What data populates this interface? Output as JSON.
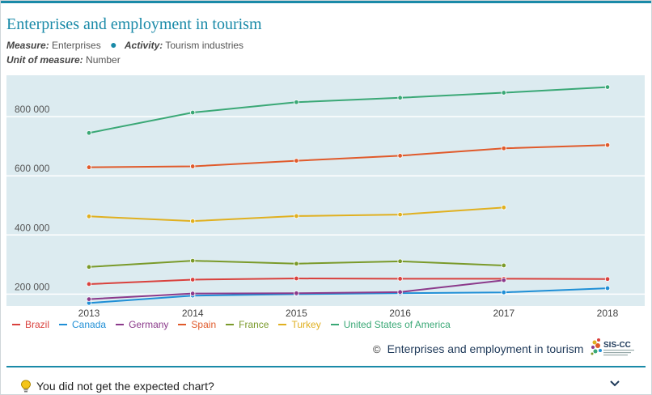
{
  "header": {
    "title": "Enterprises and employment in tourism",
    "measure_key": "Measure:",
    "measure_val": "Enterprises",
    "activity_key": "Activity:",
    "activity_val": "Tourism industries",
    "unit_key": "Unit of measure:",
    "unit_val": "Number"
  },
  "source": {
    "copyright": "©",
    "link": "Enterprises and employment in tourism",
    "logo_text": "SIS-CC"
  },
  "footer": {
    "prompt": "You did not get the expected chart?",
    "icon": "lightbulb-icon",
    "toggle_icon": "chevron-down-icon"
  },
  "colors": {
    "accent": "#1a8aa8",
    "plot_bg": "#dcebf0"
  },
  "chart_data": {
    "type": "line",
    "title": "Enterprises and employment in tourism",
    "xlabel": "",
    "ylabel": "",
    "x": [
      "2013",
      "2014",
      "2015",
      "2016",
      "2017",
      "2018"
    ],
    "ylim": [
      160000,
      940000
    ],
    "yticks": [
      200000,
      400000,
      600000,
      800000
    ],
    "ytick_labels": [
      "200 000",
      "400 000",
      "600 000",
      "800 000"
    ],
    "grid": true,
    "legend_position": "bottom",
    "series": [
      {
        "name": "Brazil",
        "color": "#d9413d",
        "values": [
          234000,
          249000,
          253000,
          252000,
          252000,
          251000
        ]
      },
      {
        "name": "Canada",
        "color": "#1f8fd6",
        "values": [
          170000,
          195000,
          200000,
          203000,
          206000,
          220000
        ]
      },
      {
        "name": "Germany",
        "color": "#8b3a8b",
        "values": [
          183000,
          202000,
          203000,
          207000,
          247000,
          null
        ]
      },
      {
        "name": "Spain",
        "color": "#e05a2b",
        "values": [
          629000,
          632000,
          651000,
          668000,
          693000,
          704000
        ]
      },
      {
        "name": "France",
        "color": "#7a9a2a",
        "values": [
          292000,
          313000,
          303000,
          311000,
          297000,
          null
        ]
      },
      {
        "name": "Turkey",
        "color": "#e0b020",
        "values": [
          463000,
          447000,
          464000,
          469000,
          493000,
          null
        ]
      },
      {
        "name": "United States of America",
        "color": "#3aa876",
        "values": [
          745000,
          814000,
          849000,
          864000,
          881000,
          900000
        ]
      }
    ]
  }
}
